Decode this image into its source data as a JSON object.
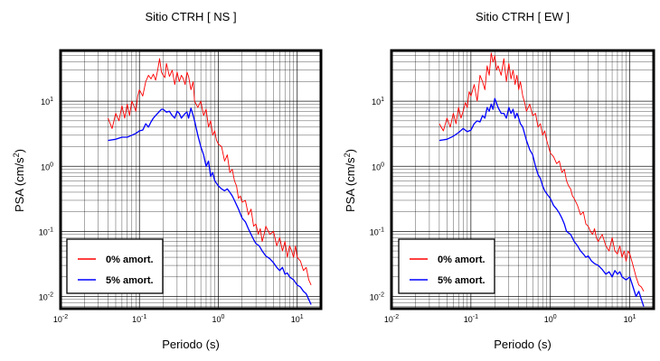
{
  "chart_data": [
    {
      "type": "line",
      "title": "Sitio CTRH [ NS ]",
      "xlabel": "Periodo (s)",
      "ylabel": "PSA (cm/s",
      "ylabel_sup": "2",
      "ylabel_close": ")",
      "xscale": "log",
      "yscale": "log",
      "xlim": [
        0.01,
        20
      ],
      "ylim": [
        0.0065,
        60
      ],
      "grid": true,
      "legend_position": "bottom-left",
      "x_ticks": [
        {
          "base": "10",
          "exp": "-2"
        },
        {
          "base": "10",
          "exp": "-1"
        },
        {
          "base": "10",
          "exp": "0"
        },
        {
          "base": "10",
          "exp": "1"
        }
      ],
      "y_ticks": [
        {
          "base": "10",
          "exp": "-2"
        },
        {
          "base": "10",
          "exp": "-1"
        },
        {
          "base": "10",
          "exp": "0"
        },
        {
          "base": "10",
          "exp": "1"
        }
      ],
      "series": [
        {
          "name": "0% amort.",
          "color": "#ff0000",
          "x": [
            0.04,
            0.045,
            0.05,
            0.055,
            0.06,
            0.065,
            0.07,
            0.075,
            0.08,
            0.085,
            0.09,
            0.095,
            0.1,
            0.11,
            0.12,
            0.13,
            0.14,
            0.15,
            0.16,
            0.17,
            0.18,
            0.19,
            0.2,
            0.21,
            0.22,
            0.24,
            0.26,
            0.28,
            0.3,
            0.32,
            0.34,
            0.36,
            0.38,
            0.4,
            0.42,
            0.45,
            0.48,
            0.5,
            0.55,
            0.6,
            0.65,
            0.7,
            0.75,
            0.8,
            0.85,
            0.9,
            0.95,
            1.0,
            1.1,
            1.2,
            1.3,
            1.4,
            1.5,
            1.6,
            1.7,
            1.8,
            1.9,
            2.0,
            2.2,
            2.4,
            2.6,
            2.8,
            3.0,
            3.2,
            3.4,
            3.6,
            3.8,
            4.0,
            4.5,
            5.0,
            5.5,
            6.0,
            6.5,
            7.0,
            7.5,
            8.0,
            8.5,
            9.0,
            9.5,
            10,
            11,
            12,
            13,
            14,
            15
          ],
          "y": [
            5.5,
            3.8,
            6.5,
            5.0,
            8.5,
            5.5,
            9.0,
            6.0,
            10,
            8.5,
            7.0,
            12,
            15,
            12,
            20,
            25,
            22,
            26,
            21,
            30,
            45,
            28,
            25,
            23,
            38,
            24,
            30,
            18,
            28,
            20,
            25,
            22,
            18,
            28,
            24,
            15,
            20,
            10,
            8,
            10,
            6,
            7.5,
            4,
            5,
            3,
            3.5,
            2.5,
            2.2,
            2.0,
            1.2,
            1.5,
            0.8,
            0.9,
            0.6,
            0.5,
            0.32,
            0.35,
            0.28,
            0.3,
            0.18,
            0.22,
            0.12,
            0.13,
            0.09,
            0.11,
            0.07,
            0.09,
            0.12,
            0.09,
            0.1,
            0.06,
            0.08,
            0.05,
            0.07,
            0.04,
            0.06,
            0.05,
            0.04,
            0.06,
            0.04,
            0.035,
            0.025,
            0.028,
            0.018,
            0.015
          ]
        },
        {
          "name": "5% amort.",
          "color": "#0000ff",
          "x": [
            0.04,
            0.05,
            0.06,
            0.07,
            0.08,
            0.09,
            0.1,
            0.11,
            0.12,
            0.13,
            0.14,
            0.15,
            0.16,
            0.17,
            0.18,
            0.19,
            0.2,
            0.22,
            0.24,
            0.26,
            0.28,
            0.3,
            0.32,
            0.34,
            0.36,
            0.38,
            0.4,
            0.42,
            0.45,
            0.48,
            0.5,
            0.55,
            0.6,
            0.65,
            0.7,
            0.75,
            0.8,
            0.85,
            0.9,
            1.0,
            1.1,
            1.2,
            1.3,
            1.4,
            1.5,
            1.6,
            1.8,
            2.0,
            2.2,
            2.4,
            2.6,
            2.8,
            3.0,
            3.3,
            3.6,
            4.0,
            4.5,
            5.0,
            5.5,
            6.0,
            6.5,
            7.0,
            7.5,
            8.0,
            9.0,
            10,
            11,
            12,
            13,
            14,
            15
          ],
          "y": [
            2.5,
            2.6,
            2.8,
            2.8,
            3.0,
            3.2,
            3.5,
            3.6,
            4.5,
            4.0,
            4.8,
            5.5,
            6.0,
            6.5,
            7.0,
            7.5,
            7.5,
            6.8,
            7.0,
            6.0,
            5.5,
            7.0,
            6.5,
            5.5,
            6.0,
            6.5,
            6.8,
            5.5,
            7.8,
            6.0,
            5.0,
            3.0,
            2.0,
            1.5,
            1.0,
            1.2,
            0.7,
            0.8,
            0.6,
            0.5,
            0.45,
            0.42,
            0.45,
            0.4,
            0.35,
            0.3,
            0.22,
            0.16,
            0.14,
            0.11,
            0.09,
            0.075,
            0.065,
            0.06,
            0.05,
            0.042,
            0.038,
            0.033,
            0.028,
            0.025,
            0.028,
            0.022,
            0.023,
            0.02,
            0.018,
            0.015,
            0.014,
            0.012,
            0.011,
            0.009,
            0.0075
          ]
        }
      ]
    },
    {
      "type": "line",
      "title": "Sitio CTRH [ EW ]",
      "xlabel": "Periodo (s)",
      "ylabel": "PSA (cm/s",
      "ylabel_sup": "2",
      "ylabel_close": ")",
      "xscale": "log",
      "yscale": "log",
      "xlim": [
        0.01,
        20
      ],
      "ylim": [
        0.0065,
        60
      ],
      "grid": true,
      "legend_position": "bottom-left",
      "x_ticks": [
        {
          "base": "10",
          "exp": "-2"
        },
        {
          "base": "10",
          "exp": "-1"
        },
        {
          "base": "10",
          "exp": "0"
        },
        {
          "base": "10",
          "exp": "1"
        }
      ],
      "y_ticks": [
        {
          "base": "10",
          "exp": "-2"
        },
        {
          "base": "10",
          "exp": "-1"
        },
        {
          "base": "10",
          "exp": "0"
        },
        {
          "base": "10",
          "exp": "1"
        }
      ],
      "series": [
        {
          "name": "0% amort.",
          "color": "#ff0000",
          "x": [
            0.04,
            0.045,
            0.05,
            0.055,
            0.06,
            0.065,
            0.07,
            0.075,
            0.08,
            0.085,
            0.09,
            0.095,
            0.1,
            0.11,
            0.12,
            0.13,
            0.14,
            0.15,
            0.16,
            0.17,
            0.18,
            0.19,
            0.2,
            0.21,
            0.22,
            0.24,
            0.26,
            0.28,
            0.3,
            0.32,
            0.34,
            0.36,
            0.38,
            0.4,
            0.42,
            0.45,
            0.48,
            0.5,
            0.55,
            0.6,
            0.65,
            0.7,
            0.75,
            0.8,
            0.85,
            0.9,
            0.95,
            1.0,
            1.1,
            1.2,
            1.3,
            1.4,
            1.5,
            1.6,
            1.7,
            1.8,
            1.9,
            2.0,
            2.2,
            2.4,
            2.6,
            2.8,
            3.0,
            3.2,
            3.4,
            3.6,
            3.8,
            4.0,
            4.5,
            5.0,
            5.5,
            6.0,
            6.5,
            7.0,
            7.5,
            8.0,
            8.5,
            9.0,
            9.5,
            10,
            11,
            12,
            13,
            14,
            15
          ],
          "y": [
            4.5,
            3.5,
            5.5,
            4.0,
            6.5,
            4.5,
            8.0,
            5.5,
            7.0,
            9.5,
            8.0,
            14,
            12,
            18,
            10,
            25,
            20,
            15,
            35,
            25,
            55,
            40,
            50,
            30,
            35,
            25,
            45,
            20,
            38,
            22,
            30,
            18,
            25,
            15,
            20,
            12,
            9,
            7,
            9,
            6,
            6.5,
            4,
            4.5,
            3,
            3.5,
            2.5,
            2.0,
            1.6,
            1.4,
            1.1,
            1.2,
            0.8,
            0.9,
            0.6,
            0.5,
            0.45,
            0.35,
            0.32,
            0.25,
            0.18,
            0.2,
            0.13,
            0.12,
            0.1,
            0.09,
            0.11,
            0.08,
            0.07,
            0.09,
            0.06,
            0.05,
            0.08,
            0.05,
            0.045,
            0.06,
            0.04,
            0.05,
            0.035,
            0.05,
            0.045,
            0.03,
            0.02,
            0.015,
            0.014,
            0.012
          ]
        },
        {
          "name": "5% amort.",
          "color": "#0000ff",
          "x": [
            0.04,
            0.05,
            0.06,
            0.07,
            0.08,
            0.09,
            0.1,
            0.11,
            0.12,
            0.13,
            0.14,
            0.15,
            0.16,
            0.17,
            0.18,
            0.19,
            0.2,
            0.22,
            0.24,
            0.26,
            0.28,
            0.3,
            0.32,
            0.34,
            0.36,
            0.38,
            0.4,
            0.42,
            0.45,
            0.48,
            0.5,
            0.55,
            0.6,
            0.65,
            0.7,
            0.75,
            0.8,
            0.85,
            0.9,
            1.0,
            1.1,
            1.2,
            1.3,
            1.4,
            1.5,
            1.6,
            1.8,
            2.0,
            2.2,
            2.4,
            2.6,
            2.8,
            3.0,
            3.3,
            3.6,
            4.0,
            4.5,
            5.0,
            5.5,
            6.0,
            6.5,
            7.0,
            7.5,
            8.0,
            9.0,
            10,
            11,
            12,
            13,
            14,
            15
          ],
          "y": [
            2.5,
            2.6,
            2.9,
            3.3,
            3.8,
            3.4,
            3.6,
            4.5,
            5.0,
            4.8,
            6.0,
            5.5,
            8.0,
            7.0,
            9.0,
            7.5,
            11,
            8.0,
            6.5,
            6.5,
            5.5,
            8.0,
            6.5,
            7.5,
            5.5,
            6.5,
            5.5,
            4.5,
            4.0,
            3.0,
            2.5,
            1.8,
            1.5,
            1.0,
            0.75,
            0.65,
            0.5,
            0.42,
            0.38,
            0.32,
            0.25,
            0.22,
            0.19,
            0.16,
            0.13,
            0.1,
            0.09,
            0.07,
            0.06,
            0.05,
            0.045,
            0.04,
            0.042,
            0.035,
            0.032,
            0.03,
            0.026,
            0.022,
            0.024,
            0.02,
            0.025,
            0.022,
            0.024,
            0.02,
            0.018,
            0.02,
            0.014,
            0.01,
            0.012,
            0.009,
            0.007
          ]
        }
      ]
    }
  ]
}
